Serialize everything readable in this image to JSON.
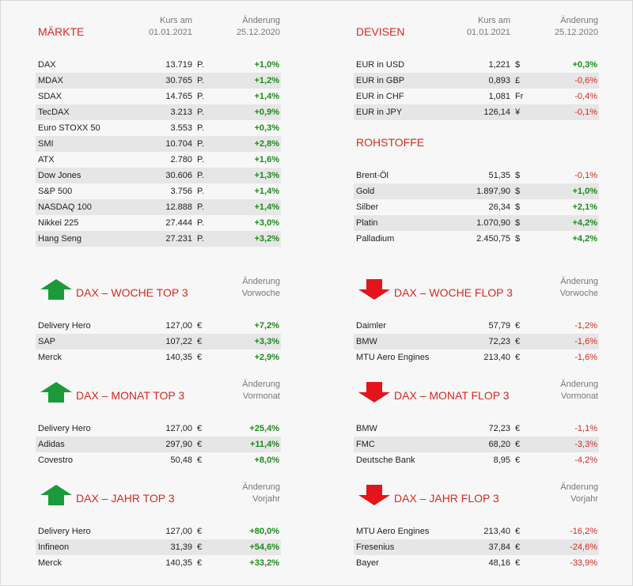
{
  "headers": {
    "kurs": [
      "Kurs am",
      "01.01.2021"
    ],
    "aend_markt": [
      "Änderung",
      "25.12.2020"
    ],
    "woche": [
      "Änderung",
      "Vorwoche"
    ],
    "monat": [
      "Änderung",
      "Vormonat"
    ],
    "jahr": [
      "Änderung",
      "Vorjahr"
    ]
  },
  "maerkte": {
    "title": "MÄRKTE",
    "rows": [
      {
        "name": "DAX",
        "value": "13.719",
        "unit": "P.",
        "change": "+1,0%",
        "dir": "pos"
      },
      {
        "name": "MDAX",
        "value": "30.765",
        "unit": "P.",
        "change": "+1,2%",
        "dir": "pos"
      },
      {
        "name": "SDAX",
        "value": "14.765",
        "unit": "P.",
        "change": "+1,4%",
        "dir": "pos"
      },
      {
        "name": "TecDAX",
        "value": "3.213",
        "unit": "P.",
        "change": "+0,9%",
        "dir": "pos"
      },
      {
        "name": "Euro STOXX 50",
        "value": "3.553",
        "unit": "P.",
        "change": "+0,3%",
        "dir": "pos"
      },
      {
        "name": "SMI",
        "value": "10.704",
        "unit": "P.",
        "change": "+2,8%",
        "dir": "pos"
      },
      {
        "name": "ATX",
        "value": "2.780",
        "unit": "P.",
        "change": "+1,6%",
        "dir": "pos"
      },
      {
        "name": "Dow Jones",
        "value": "30.606",
        "unit": "P.",
        "change": "+1,3%",
        "dir": "pos"
      },
      {
        "name": "S&P 500",
        "value": "3.756",
        "unit": "P.",
        "change": "+1,4%",
        "dir": "pos"
      },
      {
        "name": "NASDAQ 100",
        "value": "12.888",
        "unit": "P.",
        "change": "+1,4%",
        "dir": "pos"
      },
      {
        "name": "Nikkei 225",
        "value": "27.444",
        "unit": "P.",
        "change": "+3,0%",
        "dir": "pos"
      },
      {
        "name": "Hang Seng",
        "value": "27.231",
        "unit": "P.",
        "change": "+3,2%",
        "dir": "pos"
      }
    ]
  },
  "devisen": {
    "title": "DEVISEN",
    "rows": [
      {
        "name": "EUR in USD",
        "value": "1,221",
        "unit": "$",
        "change": "+0,3%",
        "dir": "pos"
      },
      {
        "name": "EUR in GBP",
        "value": "0,893",
        "unit": "£",
        "change": "-0,6%",
        "dir": "neg"
      },
      {
        "name": "EUR in CHF",
        "value": "1,081",
        "unit": "Fr",
        "change": "-0,4%",
        "dir": "neg"
      },
      {
        "name": "EUR in JPY",
        "value": "126,14",
        "unit": "¥",
        "change": "-0,1%",
        "dir": "neg"
      }
    ]
  },
  "rohstoffe": {
    "title": "ROHSTOFFE",
    "rows": [
      {
        "name": "Brent-Öl",
        "value": "51,35",
        "unit": "$",
        "change": "-0,1%",
        "dir": "neg"
      },
      {
        "name": "Gold",
        "value": "1.897,90",
        "unit": "$",
        "change": "+1,0%",
        "dir": "pos"
      },
      {
        "name": "Silber",
        "value": "26,34",
        "unit": "$",
        "change": "+2,1%",
        "dir": "pos"
      },
      {
        "name": "Platin",
        "value": "1.070,90",
        "unit": "$",
        "change": "+4,2%",
        "dir": "pos"
      },
      {
        "name": "Palladium",
        "value": "2.450,75",
        "unit": "$",
        "change": "+4,2%",
        "dir": "pos"
      }
    ]
  },
  "woche_top": {
    "title": "DAX – WOCHE TOP 3",
    "rows": [
      {
        "name": "Delivery Hero",
        "value": "127,00",
        "unit": "€",
        "change": "+7,2%",
        "dir": "pos"
      },
      {
        "name": "SAP",
        "value": "107,22",
        "unit": "€",
        "change": "+3,3%",
        "dir": "pos"
      },
      {
        "name": "Merck",
        "value": "140,35",
        "unit": "€",
        "change": "+2,9%",
        "dir": "pos"
      }
    ]
  },
  "woche_flop": {
    "title": "DAX – WOCHE FLOP 3",
    "rows": [
      {
        "name": "Daimler",
        "value": "57,79",
        "unit": "€",
        "change": "-1,2%",
        "dir": "neg"
      },
      {
        "name": "BMW",
        "value": "72,23",
        "unit": "€",
        "change": "-1,6%",
        "dir": "neg"
      },
      {
        "name": "MTU Aero Engines",
        "value": "213,40",
        "unit": "€",
        "change": "-1,6%",
        "dir": "neg"
      }
    ]
  },
  "monat_top": {
    "title": "DAX – MONAT TOP 3",
    "rows": [
      {
        "name": "Delivery Hero",
        "value": "127,00",
        "unit": "€",
        "change": "+25,4%",
        "dir": "pos"
      },
      {
        "name": "Adidas",
        "value": "297,90",
        "unit": "€",
        "change": "+11,4%",
        "dir": "pos"
      },
      {
        "name": "Covestro",
        "value": "50,48",
        "unit": "€",
        "change": "+8,0%",
        "dir": "pos"
      }
    ]
  },
  "monat_flop": {
    "title": "DAX – MONAT FLOP 3",
    "rows": [
      {
        "name": "BMW",
        "value": "72,23",
        "unit": "€",
        "change": "-1,1%",
        "dir": "neg"
      },
      {
        "name": "FMC",
        "value": "68,20",
        "unit": "€",
        "change": "-3,3%",
        "dir": "neg"
      },
      {
        "name": "Deutsche Bank",
        "value": "8,95",
        "unit": "€",
        "change": "-4,2%",
        "dir": "neg"
      }
    ]
  },
  "jahr_top": {
    "title": "DAX – JAHR TOP 3",
    "rows": [
      {
        "name": "Delivery Hero",
        "value": "127,00",
        "unit": "€",
        "change": "+80,0%",
        "dir": "pos"
      },
      {
        "name": "Infineon",
        "value": "31,39",
        "unit": "€",
        "change": "+54,6%",
        "dir": "pos"
      },
      {
        "name": "Merck",
        "value": "140,35",
        "unit": "€",
        "change": "+33,2%",
        "dir": "pos"
      }
    ]
  },
  "jahr_flop": {
    "title": "DAX – JAHR FLOP 3",
    "rows": [
      {
        "name": "MTU Aero Engines",
        "value": "213,40",
        "unit": "€",
        "change": "-16,2%",
        "dir": "neg"
      },
      {
        "name": "Fresenius",
        "value": "37,84",
        "unit": "€",
        "change": "-24,6%",
        "dir": "neg"
      },
      {
        "name": "Bayer",
        "value": "48,16",
        "unit": "€",
        "change": "-33,9%",
        "dir": "neg"
      }
    ]
  },
  "colors": {
    "positive": "#1a8a1a",
    "negative": "#d42a20",
    "title": "#d42a20",
    "arrow_up": "#1a9a3a",
    "arrow_down": "#e3141b"
  }
}
